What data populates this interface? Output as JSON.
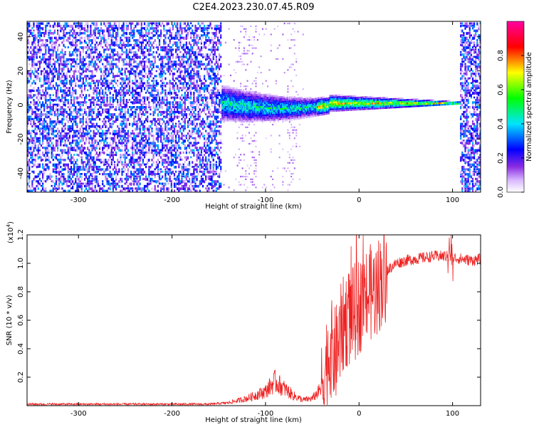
{
  "title": "C2E4.2023.230.07.45.R09",
  "chart_data": [
    {
      "type": "heatmap",
      "name": "spectrogram",
      "xlabel": "Height of straight line (km)",
      "ylabel": "Frequency (Hz)",
      "xlim": [
        -355,
        130
      ],
      "ylim": [
        -51,
        49
      ],
      "xticks": [
        -300,
        -200,
        -100,
        0,
        100
      ],
      "yticks": [
        -40,
        -20,
        0,
        20,
        40
      ],
      "colorbar": {
        "label": "Normalized spectral amplitude",
        "range": [
          0,
          1
        ],
        "ticks": [
          "0.0",
          "0.2",
          "0.4",
          "0.6",
          "0.8"
        ],
        "tick_values": [
          0.0,
          0.2,
          0.4,
          0.6,
          0.8
        ],
        "colors": [
          "#ffffff",
          "#d8b8ff",
          "#8a2be2",
          "#0000ff",
          "#00e5ff",
          "#00ff00",
          "#ffff00",
          "#ff0000",
          "#ff00a0"
        ]
      },
      "regions": [
        {
          "label": "noise",
          "x_range": [
            -355,
            -147
          ],
          "freq_range": [
            -51,
            49
          ],
          "amplitude": 0.25
        },
        {
          "label": "sparse noise",
          "x_range": [
            -147,
            -60
          ],
          "freq_range": [
            -51,
            49
          ],
          "amplitude": 0.08
        },
        {
          "label": "signal band",
          "x_range": [
            -147,
            108
          ],
          "center_freq": 1.5,
          "amplitude": 0.9
        },
        {
          "label": "noise",
          "x_range": [
            108,
            130
          ],
          "freq_range": [
            -51,
            49
          ],
          "amplitude": 0.25
        }
      ]
    },
    {
      "type": "line",
      "name": "snr",
      "xlabel": "Height of straight line (km)",
      "ylabel": "SNR (10 * v/v)",
      "y_multiplier_label": "(x10",
      "y_multiplier_exp": "4",
      "xlim": [
        -355,
        130
      ],
      "ylim": [
        0,
        1.2
      ],
      "xticks": [
        -300,
        -200,
        -100,
        0,
        100
      ],
      "yticks": [
        0.2,
        0.4,
        0.6,
        0.8,
        1.0,
        1.2
      ],
      "ytick_labels": [
        "0.2",
        "0.4",
        "0.6",
        "0.8",
        "1.0",
        "1.2"
      ],
      "color": "#ee2222",
      "series": [
        {
          "name": "SNR",
          "x": [
            -355,
            -300,
            -250,
            -200,
            -160,
            -140,
            -120,
            -100,
            -90,
            -80,
            -70,
            -60,
            -50,
            -40,
            -35,
            -30,
            -25,
            -20,
            -15,
            -10,
            -5,
            0,
            5,
            10,
            15,
            20,
            25,
            30,
            40,
            50,
            60,
            70,
            80,
            90,
            95,
            100,
            110,
            120,
            130
          ],
          "y": [
            0.01,
            0.01,
            0.01,
            0.01,
            0.01,
            0.02,
            0.05,
            0.1,
            0.17,
            0.12,
            0.07,
            0.04,
            0.05,
            0.12,
            0.3,
            0.4,
            0.35,
            0.5,
            0.6,
            0.62,
            0.65,
            0.7,
            0.75,
            0.78,
            0.8,
            0.84,
            0.9,
            0.95,
            1.0,
            1.02,
            1.03,
            1.04,
            1.05,
            1.05,
            1.05,
            1.04,
            1.03,
            1.02,
            1.03
          ]
        }
      ]
    }
  ]
}
